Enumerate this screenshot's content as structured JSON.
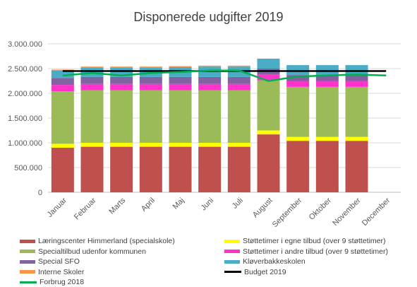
{
  "chart_data": {
    "type": "bar",
    "stacked": true,
    "title": "Disponerede udgifter 2019",
    "categories": [
      "Januar",
      "Februar",
      "Marts",
      "April",
      "Maj",
      "Juni",
      "Juli",
      "August",
      "September",
      "Oktober",
      "November",
      "December"
    ],
    "ylim": [
      0,
      3000000
    ],
    "yticks": [
      "0",
      "500.000",
      "1.000.000",
      "1.500.000",
      "2.000.000",
      "2.500.000",
      "3.000.000"
    ],
    "grid": true,
    "legend_position": "bottom",
    "series": [
      {
        "name": "Læringscenter Himmerland (specialskole)",
        "color": "#c0504d",
        "values": [
          900000,
          920000,
          920000,
          920000,
          920000,
          920000,
          920000,
          1170000,
          1040000,
          1040000,
          1040000,
          0
        ]
      },
      {
        "name": "Støttetimer i egne tilbud (over 9 støttetimer)",
        "color": "#ffff00",
        "values": [
          80000,
          80000,
          80000,
          80000,
          80000,
          80000,
          80000,
          80000,
          80000,
          80000,
          80000,
          0
        ]
      },
      {
        "name": "Specialtilbud udenfor kommunen",
        "color": "#9bbb59",
        "values": [
          1060000,
          1060000,
          1060000,
          1060000,
          1060000,
          1060000,
          1060000,
          1010000,
          1010000,
          1010000,
          1010000,
          0
        ]
      },
      {
        "name": "Støttetimer i andre tilbud (over 9 støttetimer)",
        "color": "#ff33cc",
        "values": [
          130000,
          130000,
          130000,
          130000,
          130000,
          130000,
          130000,
          120000,
          120000,
          120000,
          120000,
          0
        ]
      },
      {
        "name": "Special SFO",
        "color": "#8064a2",
        "values": [
          140000,
          140000,
          140000,
          140000,
          140000,
          140000,
          140000,
          120000,
          120000,
          120000,
          120000,
          0
        ]
      },
      {
        "name": "Kløverbakkeskolen",
        "color": "#4bacc6",
        "values": [
          150000,
          190000,
          190000,
          190000,
          200000,
          210000,
          210000,
          200000,
          200000,
          200000,
          200000,
          0
        ]
      },
      {
        "name": "Interne Skoler",
        "color": "#f79646",
        "values": [
          20000,
          20000,
          20000,
          20000,
          20000,
          20000,
          20000,
          0,
          0,
          0,
          0,
          0
        ]
      }
    ],
    "lines": [
      {
        "name": "Budget 2019",
        "color": "#000000",
        "values": [
          2450000,
          2450000,
          2450000,
          2450000,
          2450000,
          2450000,
          2450000,
          2450000,
          2450000,
          2450000,
          2450000,
          2450000
        ]
      },
      {
        "name": "Forbrug 2018",
        "color": "#00b050",
        "values": [
          2360000,
          2410000,
          2360000,
          2410000,
          2430000,
          2460000,
          2460000,
          2250000,
          2340000,
          2360000,
          2380000,
          2360000
        ]
      }
    ]
  },
  "legend_layout": [
    [
      "Læringscenter Himmerland (specialskole)",
      "Støttetimer i egne tilbud (over 9 støttetimer)"
    ],
    [
      "Specialtilbud udenfor kommunen",
      "Støttetimer i andre tilbud (over 9 støttetimer)"
    ],
    [
      "Special SFO",
      "Kløverbakkeskolen"
    ],
    [
      "Interne Skoler",
      "Budget 2019"
    ],
    [
      "Forbrug 2018",
      ""
    ]
  ]
}
